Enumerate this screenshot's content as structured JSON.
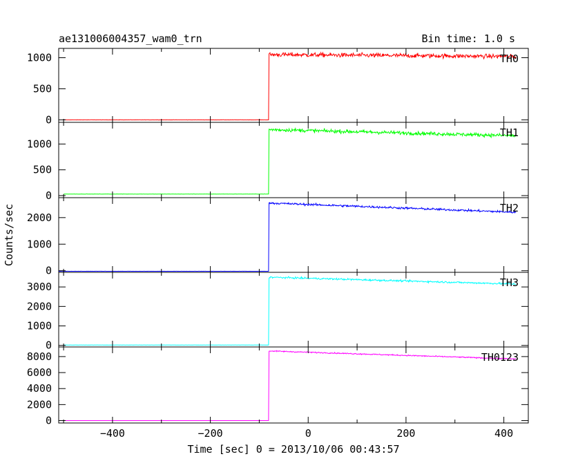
{
  "header": {
    "title": "ae131006004357_wam0_trn",
    "bin_time": "Bin time: 1.0 s"
  },
  "chart_data": {
    "type": "line",
    "title": "ae131006004357_wam0_trn",
    "xlabel": "Time [sec] 0 = 2013/10/06 00:43:57",
    "ylabel": "Counts/sec",
    "xlim": [
      -510,
      450
    ],
    "x_ticks": [
      -400,
      -200,
      0,
      200,
      400
    ],
    "x_tick_labels": [
      "−400",
      "−200",
      "0",
      "200",
      "400"
    ],
    "onset_time": -80,
    "panels": [
      {
        "name": "TH0",
        "color": "#ff0000",
        "ylim": [
          -40,
          1150
        ],
        "y_ticks": [
          0,
          500,
          1000
        ],
        "y_tick_labels": [
          "0",
          "500",
          "1000"
        ],
        "pre_level": 0,
        "post_start": 1050,
        "post_end": 1020,
        "noise": 35,
        "t_start": -500,
        "t_end": 425
      },
      {
        "name": "TH1",
        "color": "#00ff00",
        "ylim": [
          -40,
          1420
        ],
        "y_ticks": [
          0,
          500,
          1000
        ],
        "y_tick_labels": [
          "0",
          "500",
          "1000"
        ],
        "pre_level": 30,
        "post_start": 1280,
        "post_end": 1160,
        "noise": 35,
        "t_start": -500,
        "t_end": 425
      },
      {
        "name": "TH2",
        "color": "#0000ff",
        "ylim": [
          -60,
          2750
        ],
        "y_ticks": [
          0,
          1000,
          2000
        ],
        "y_tick_labels": [
          "0",
          "1000",
          "2000"
        ],
        "pre_level": -20,
        "post_start": 2550,
        "post_end": 2200,
        "noise": 40,
        "t_start": -510,
        "t_end": 425
      },
      {
        "name": "TH3",
        "color": "#00ffff",
        "ylim": [
          -80,
          3750
        ],
        "y_ticks": [
          0,
          1000,
          2000,
          3000
        ],
        "y_tick_labels": [
          "0",
          "1000",
          "2000",
          "3000"
        ],
        "pre_level": 20,
        "post_start": 3500,
        "post_end": 3150,
        "noise": 45,
        "t_start": -500,
        "t_end": 425
      },
      {
        "name": "TH0123",
        "color": "#ff00ff",
        "ylim": [
          -300,
          9200
        ],
        "y_ticks": [
          0,
          2000,
          4000,
          6000,
          8000
        ],
        "y_tick_labels": [
          "0",
          "2000",
          "4000",
          "6000",
          "8000"
        ],
        "pre_level": 0,
        "post_start": 8700,
        "post_end": 7700,
        "noise": 70,
        "t_start": -500,
        "t_end": 425
      }
    ]
  }
}
